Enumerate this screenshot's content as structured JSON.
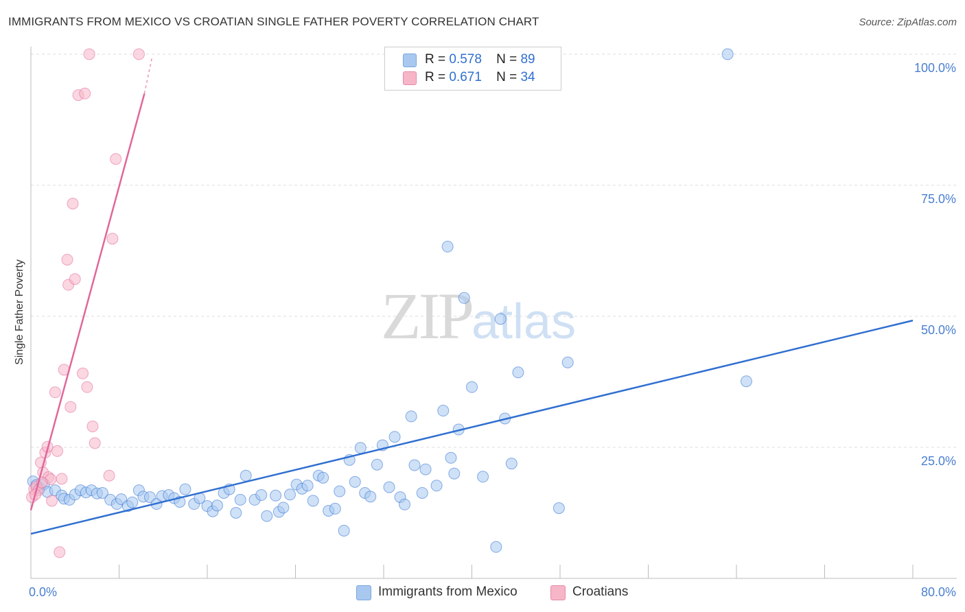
{
  "header": {
    "title": "IMMIGRANTS FROM MEXICO VS CROATIAN SINGLE FATHER POVERTY CORRELATION CHART",
    "source": "Source: ZipAtlas.com"
  },
  "watermark": {
    "zip": "ZIP",
    "atlas": "atlas"
  },
  "legend": {
    "rows": [
      {
        "r_label": "R =",
        "r_value": "0.578",
        "n_label": "N =",
        "n_value": "89",
        "color": "#a8c8f0"
      },
      {
        "r_label": "R =",
        "r_value": "0.671",
        "n_label": "N =",
        "n_value": "34",
        "color": "#f7b6c8"
      }
    ]
  },
  "bottom_legend": [
    {
      "label": "Immigrants from Mexico",
      "color": "#a8c8f0"
    },
    {
      "label": "Croatians",
      "color": "#f7b6c8"
    }
  ],
  "chart_data": {
    "type": "scatter",
    "title": "IMMIGRANTS FROM MEXICO VS CROATIAN SINGLE FATHER POVERTY CORRELATION CHART",
    "xlabel": "",
    "ylabel": "Single Father Poverty",
    "xlim": [
      0,
      80
    ],
    "ylim": [
      0,
      100
    ],
    "x_tick_labels": [
      "0.0%",
      "80.0%"
    ],
    "y_tick_labels": [
      "25.0%",
      "50.0%",
      "75.0%",
      "100.0%"
    ],
    "y_ticks": [
      25,
      50,
      75,
      100
    ],
    "grid": true,
    "series": [
      {
        "name": "Immigrants from Mexico",
        "color": "#2f6fd0",
        "fill": "#a8c8f0",
        "trend": {
          "x": [
            0,
            80
          ],
          "y": [
            8.5,
            49.2
          ],
          "dashed_from": null
        },
        "points": [
          [
            0.2,
            18.5
          ],
          [
            0.5,
            17.8
          ],
          [
            0.8,
            17.2
          ],
          [
            1.2,
            18.0
          ],
          [
            1.5,
            16.5
          ],
          [
            2.2,
            16.8
          ],
          [
            2.8,
            15.8
          ],
          [
            3.0,
            15.2
          ],
          [
            3.5,
            15.0
          ],
          [
            4.0,
            16.0
          ],
          [
            4.5,
            16.8
          ],
          [
            5.0,
            16.4
          ],
          [
            5.5,
            16.8
          ],
          [
            6.0,
            16.2
          ],
          [
            6.5,
            16.3
          ],
          [
            7.2,
            15.0
          ],
          [
            7.8,
            14.2
          ],
          [
            8.2,
            15.1
          ],
          [
            8.8,
            13.8
          ],
          [
            9.2,
            14.5
          ],
          [
            9.8,
            16.8
          ],
          [
            10.2,
            15.6
          ],
          [
            10.8,
            15.5
          ],
          [
            11.4,
            14.2
          ],
          [
            11.9,
            15.7
          ],
          [
            12.5,
            15.9
          ],
          [
            13.0,
            15.3
          ],
          [
            13.5,
            14.6
          ],
          [
            14.0,
            17.0
          ],
          [
            14.8,
            14.2
          ],
          [
            15.3,
            15.3
          ],
          [
            16.0,
            13.8
          ],
          [
            16.5,
            12.8
          ],
          [
            16.9,
            13.9
          ],
          [
            17.5,
            16.3
          ],
          [
            18.0,
            17.0
          ],
          [
            18.6,
            12.5
          ],
          [
            19.0,
            15.0
          ],
          [
            19.5,
            19.6
          ],
          [
            20.3,
            15.0
          ],
          [
            20.9,
            15.9
          ],
          [
            21.4,
            11.9
          ],
          [
            22.2,
            15.8
          ],
          [
            22.5,
            12.7
          ],
          [
            22.9,
            13.5
          ],
          [
            23.5,
            16.0
          ],
          [
            24.1,
            17.9
          ],
          [
            24.6,
            17.1
          ],
          [
            25.1,
            17.7
          ],
          [
            25.6,
            14.8
          ],
          [
            26.1,
            19.6
          ],
          [
            26.5,
            19.2
          ],
          [
            27.0,
            12.9
          ],
          [
            27.6,
            13.3
          ],
          [
            28.0,
            16.6
          ],
          [
            28.4,
            9.1
          ],
          [
            28.9,
            22.6
          ],
          [
            29.4,
            18.4
          ],
          [
            29.9,
            24.9
          ],
          [
            30.3,
            16.3
          ],
          [
            30.8,
            15.6
          ],
          [
            31.4,
            21.7
          ],
          [
            31.9,
            25.4
          ],
          [
            32.5,
            17.4
          ],
          [
            33.0,
            27.0
          ],
          [
            33.5,
            15.5
          ],
          [
            33.9,
            14.1
          ],
          [
            34.5,
            30.9
          ],
          [
            34.8,
            21.6
          ],
          [
            35.5,
            16.3
          ],
          [
            35.8,
            20.8
          ],
          [
            36.8,
            17.7
          ],
          [
            37.4,
            32.0
          ],
          [
            37.8,
            63.3
          ],
          [
            38.1,
            23.0
          ],
          [
            38.4,
            20.0
          ],
          [
            38.8,
            28.4
          ],
          [
            39.3,
            53.5
          ],
          [
            40.0,
            36.5
          ],
          [
            41.0,
            19.4
          ],
          [
            42.2,
            6.0
          ],
          [
            42.6,
            49.5
          ],
          [
            43.0,
            30.5
          ],
          [
            43.6,
            21.9
          ],
          [
            44.2,
            39.3
          ],
          [
            47.9,
            13.4
          ],
          [
            48.7,
            41.2
          ],
          [
            63.2,
            100.0
          ],
          [
            64.9,
            37.6
          ]
        ]
      },
      {
        "name": "Croatians",
        "color": "#e0679a",
        "fill": "#f7b6c8",
        "trend": {
          "x": [
            0,
            10.3
          ],
          "y": [
            13.0,
            92.5
          ],
          "dashed_from": 10.3,
          "dashed_to": [
            11.0,
            99.5
          ]
        },
        "points": [
          [
            0.1,
            15.5
          ],
          [
            0.3,
            17.0
          ],
          [
            0.5,
            17.5
          ],
          [
            0.7,
            16.8
          ],
          [
            0.9,
            22.1
          ],
          [
            1.1,
            20.2
          ],
          [
            1.3,
            24.0
          ],
          [
            1.5,
            25.1
          ],
          [
            1.6,
            19.3
          ],
          [
            1.8,
            18.9
          ],
          [
            1.9,
            14.8
          ],
          [
            2.2,
            35.5
          ],
          [
            2.4,
            24.3
          ],
          [
            2.6,
            5.0
          ],
          [
            2.8,
            19.0
          ],
          [
            3.0,
            39.8
          ],
          [
            3.3,
            60.8
          ],
          [
            3.4,
            56.0
          ],
          [
            3.6,
            32.7
          ],
          [
            3.8,
            71.5
          ],
          [
            4.0,
            57.1
          ],
          [
            4.3,
            92.2
          ],
          [
            4.7,
            39.1
          ],
          [
            4.9,
            92.5
          ],
          [
            5.1,
            36.5
          ],
          [
            5.3,
            100.0
          ],
          [
            5.6,
            29.0
          ],
          [
            5.8,
            25.8
          ],
          [
            7.1,
            19.6
          ],
          [
            7.4,
            64.8
          ],
          [
            7.7,
            80.0
          ],
          [
            9.8,
            100.0
          ],
          [
            0.4,
            16.0
          ],
          [
            1.0,
            18.3
          ]
        ]
      }
    ]
  }
}
